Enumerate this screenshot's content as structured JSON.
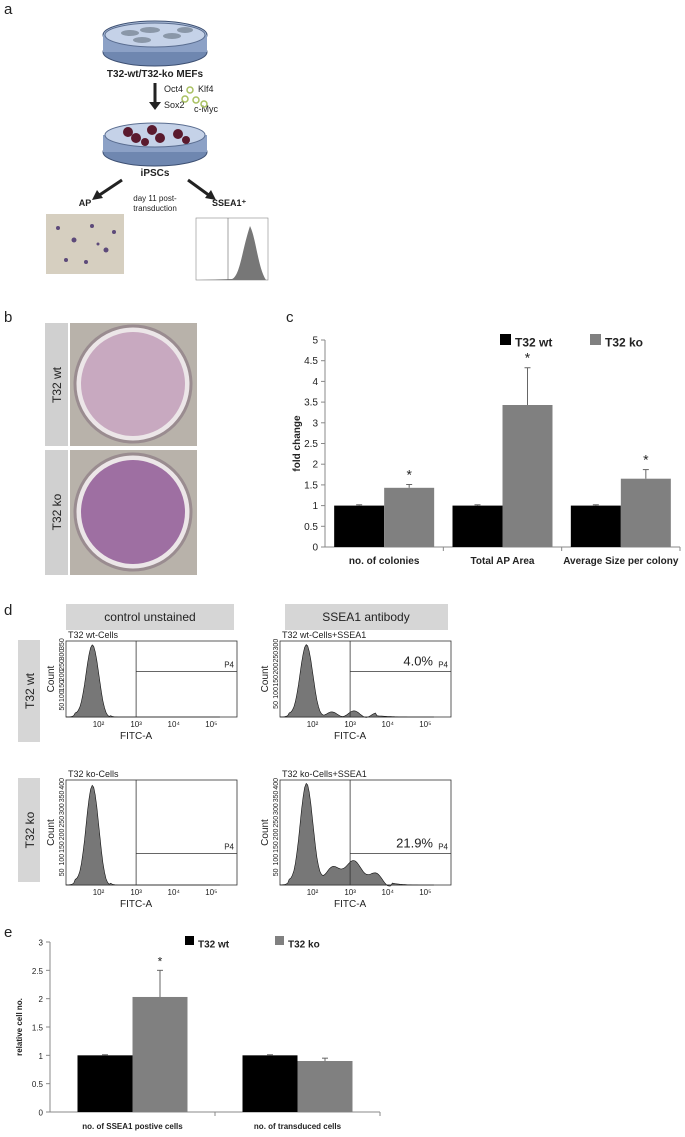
{
  "panel_labels": [
    "a",
    "b",
    "c",
    "d",
    "e"
  ],
  "schematic": {
    "mefs": "T32-wt/T32-ko MEFs",
    "factors": [
      "Oct4",
      "Klf4",
      "Sox2",
      "c-Myc"
    ],
    "ipscs": "iPSCs",
    "ap": "AP",
    "timing": [
      "day 11 post-",
      "transduction"
    ],
    "ssea1": "SSEA1⁺"
  },
  "photos": {
    "rows": [
      "T32 wt",
      "T32 ko"
    ]
  },
  "chart_data": [
    {
      "type": "bar",
      "y_label": "fold change",
      "categories": [
        "no. of colonies",
        "Total AP Area",
        "Average Size per colony"
      ],
      "series": [
        {
          "name": "T32 wt",
          "color": "#000000",
          "values": [
            1,
            1,
            1
          ],
          "errors": [
            0.02,
            0.02,
            0.02
          ]
        },
        {
          "name": "T32 ko",
          "color": "#808080",
          "values": [
            1.43,
            3.43,
            1.65
          ],
          "errors": [
            0.08,
            0.9,
            0.22
          ],
          "annotations": [
            "*",
            "*",
            "*"
          ]
        }
      ],
      "ylim": [
        0,
        5
      ],
      "yticks": [
        0,
        0.5,
        1,
        1.5,
        2,
        2.5,
        3,
        3.5,
        4,
        4.5,
        5
      ],
      "legend": "top-right"
    },
    {
      "type": "bar",
      "y_label": "relative cell no.",
      "categories": [
        "no. of SSEA1 postive cells",
        "no. of transduced cells"
      ],
      "series": [
        {
          "name": "T32 wt",
          "color": "#000000",
          "values": [
            1,
            1
          ],
          "errors": [
            0.01,
            0.01
          ]
        },
        {
          "name": "T32 ko",
          "color": "#808080",
          "values": [
            2.03,
            0.9
          ],
          "errors": [
            0.47,
            0.05
          ],
          "annotations": [
            "*",
            null
          ]
        }
      ],
      "ylim": [
        0,
        3
      ],
      "yticks": [
        0,
        0.5,
        1,
        1.5,
        2,
        2.5,
        3
      ],
      "legend": "top-center"
    }
  ],
  "flow": {
    "columns": [
      "control unstained",
      "SSEA1 antibody"
    ],
    "rows": [
      "T32 wt",
      "T32 ko"
    ],
    "y_label": "Count",
    "x_label": "FITC-A",
    "gate": "P4",
    "xticks": [
      "10²",
      "10³",
      "10⁴",
      "10⁵"
    ],
    "plots": [
      {
        "title": "T32 wt-Cells",
        "yticks": [
          "50",
          "100",
          "150",
          "200",
          "250",
          "300",
          "350"
        ]
      },
      {
        "title": "T32 wt-Cells+SSEA1",
        "percent": "4.0%",
        "yticks": [
          "50",
          "100",
          "150",
          "200",
          "250",
          "300"
        ]
      },
      {
        "title": "T32 ko-Cells",
        "yticks": [
          "50",
          "100",
          "150",
          "200",
          "250",
          "300",
          "350",
          "400"
        ]
      },
      {
        "title": "T32 ko-Cells+SSEA1",
        "percent": "21.9%",
        "yticks": [
          "50",
          "100",
          "150",
          "200",
          "250",
          "300",
          "350",
          "400"
        ]
      }
    ]
  }
}
